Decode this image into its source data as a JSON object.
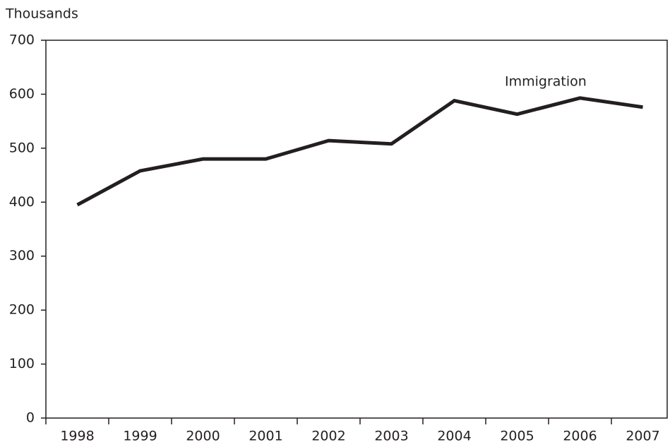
{
  "chart_data": {
    "type": "line",
    "y_label": "Thousands",
    "categories": [
      "1998",
      "1999",
      "2000",
      "2001",
      "2002",
      "2003",
      "2004",
      "2005",
      "2006",
      "2007"
    ],
    "series": [
      {
        "name": "Immigration",
        "color": "#231f20",
        "values": [
          395,
          458,
          480,
          480,
          514,
          508,
          588,
          563,
          593,
          576
        ]
      }
    ],
    "ylim": [
      0,
      700
    ],
    "yticks": [
      0,
      100,
      200,
      300,
      400,
      500,
      600,
      700
    ]
  }
}
